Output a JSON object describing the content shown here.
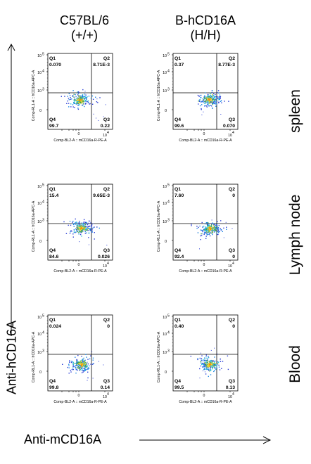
{
  "columns": [
    {
      "line1": "C57BL/6",
      "line2": "(+/+)"
    },
    {
      "line1": "B-hCD16A",
      "line2": "(H/H)"
    }
  ],
  "rows": [
    "spleen",
    "Lymph node",
    "Blood"
  ],
  "axes": {
    "y_label": "Anti-hCD16A",
    "x_label": "Anti-mCD16A"
  },
  "plot_axes": {
    "x_title": "Comp-BL2-A :: mCD16a-R-PE-A",
    "y_title": "Comp-RL1-A :: hCD16a-APC-A",
    "x_ticks": [
      "0",
      "10",
      "4"
    ],
    "y_ticks": [
      "5",
      "4",
      "3",
      "0"
    ]
  },
  "chart_data": [
    {
      "type": "scatter",
      "row": "spleen",
      "column": "C57BL/6 (+/+)",
      "quadrants": {
        "Q1": "0.070",
        "Q2": "8.71E-3",
        "Q3": "0.22",
        "Q4": "99.7"
      }
    },
    {
      "type": "scatter",
      "row": "spleen",
      "column": "B-hCD16A (H/H)",
      "quadrants": {
        "Q1": "0.37",
        "Q2": "8.77E-3",
        "Q3": "0.070",
        "Q4": "99.6"
      }
    },
    {
      "type": "scatter",
      "row": "Lymph node",
      "column": "C57BL/6 (+/+)",
      "quadrants": {
        "Q1": "15.4",
        "Q2": "9.65E-3",
        "Q3": "0.026",
        "Q4": "84.6"
      }
    },
    {
      "type": "scatter",
      "row": "Lymph node",
      "column": "B-hCD16A (H/H)",
      "quadrants": {
        "Q1": "7.60",
        "Q2": "0",
        "Q3": "0",
        "Q4": "92.4"
      }
    },
    {
      "type": "scatter",
      "row": "Blood",
      "column": "C57BL/6 (+/+)",
      "quadrants": {
        "Q1": "0.024",
        "Q2": "0",
        "Q3": "0.14",
        "Q4": "99.8"
      }
    },
    {
      "type": "scatter",
      "row": "Blood",
      "column": "B-hCD16A (H/H)",
      "quadrants": {
        "Q1": "0.40",
        "Q2": "0",
        "Q3": "0.13",
        "Q4": "99.5"
      }
    }
  ]
}
